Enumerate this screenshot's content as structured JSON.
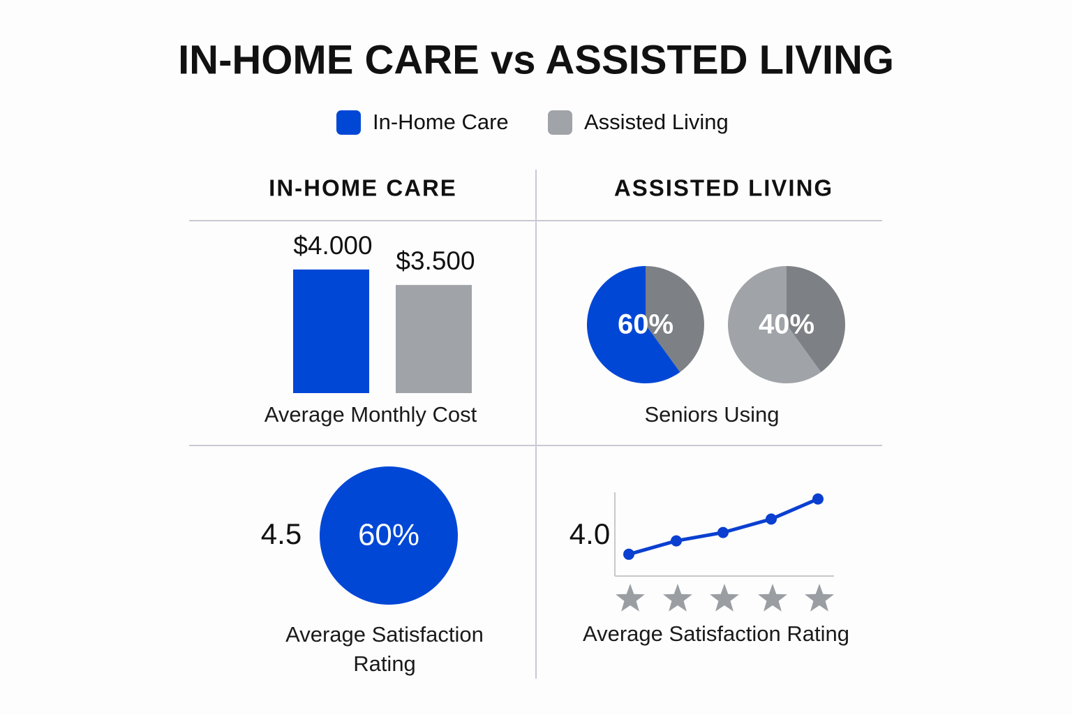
{
  "title": "IN-HOME CARE vs ASSISTED LIVING",
  "columns": [
    "IN-HOME CARE",
    "ASSISTED LIVING"
  ],
  "chart_data": [
    {
      "type": "bar",
      "label": "Average Monthly Cost",
      "series": [
        {
          "name": "In-Home Care",
          "color": "#0047d6",
          "values": [
            4000
          ],
          "value_labels": [
            "$4.000"
          ]
        },
        {
          "name": "Assisted Living",
          "color": "#a0a4a8",
          "values": [
            3500
          ],
          "value_labels": [
            "$3.500"
          ]
        }
      ]
    },
    {
      "type": "pie",
      "label": "Seniors Using",
      "pies": [
        {
          "slices": [
            {
              "value": 40,
              "color": "#7d8185"
            },
            {
              "value": 60,
              "label": "60%",
              "color": "#0047d6"
            }
          ]
        },
        {
          "slices": [
            {
              "value": 40,
              "label": "40%",
              "color": "#7d8185"
            },
            {
              "value": 60,
              "color": "#a0a4a8"
            }
          ]
        }
      ]
    },
    {
      "type": "circle",
      "rating": 4.5,
      "values": [
        60
      ],
      "value_labels": [
        "60%"
      ],
      "color": "#0047d6",
      "label": "Average Satisfaction Rating"
    },
    {
      "type": "line",
      "rating": {
        "value": 4,
        "label": "4.0"
      },
      "categories": [
        null,
        null,
        null,
        null,
        null
      ],
      "values": [
        1.3,
        2.1,
        2.6,
        3.4,
        4.6
      ],
      "ylim": [
        0,
        5
      ],
      "color": "#0a3fd0",
      "label": "Average Satisfaction Rating"
    }
  ]
}
